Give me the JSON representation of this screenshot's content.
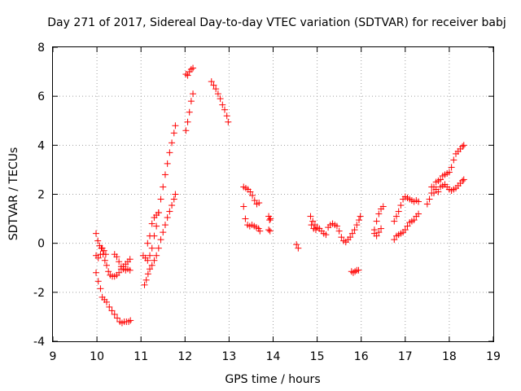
{
  "chart_data": {
    "type": "scatter",
    "title": "Day 271 of 2017, Sidereal Day-to-day VTEC variation (SDTVAR) for receiver babj",
    "xlabel": "GPS time / hours",
    "ylabel": "SDTVAR / TECUs",
    "xlim": [
      9,
      19
    ],
    "ylim": [
      -4,
      8
    ],
    "xticks": [
      "9",
      "10",
      "11",
      "12",
      "13",
      "14",
      "15",
      "16",
      "17",
      "18",
      "19"
    ],
    "yticks": [
      "-4",
      "-2",
      "0",
      "2",
      "4",
      "6",
      "8"
    ],
    "grid": true,
    "marker": "plus",
    "color": "#ff0000",
    "series": [
      {
        "name": "SDTVAR",
        "segments": [
          {
            "x": [
              9.98,
              10.03,
              10.08,
              10.12,
              10.17,
              10.22,
              10.28,
              10.34,
              10.4,
              10.46,
              10.52,
              10.57,
              10.62,
              10.67,
              10.72,
              10.76
            ],
            "y": [
              -1.2,
              -1.55,
              -1.85,
              -2.2,
              -2.3,
              -2.4,
              -2.6,
              -2.75,
              -2.9,
              -3.05,
              -3.2,
              -3.25,
              -3.2,
              -3.2,
              -3.2,
              -3.15
            ]
          },
          {
            "x": [
              9.98,
              10.02,
              10.06,
              10.1,
              10.14,
              10.18,
              10.22,
              10.26,
              10.3,
              10.35,
              10.4,
              10.45,
              10.5,
              10.55,
              10.6,
              10.65,
              10.7,
              10.75
            ],
            "y": [
              0.4,
              0.1,
              -0.1,
              -0.2,
              -0.45,
              -0.7,
              -0.9,
              -1.15,
              -1.3,
              -1.35,
              -1.35,
              -1.3,
              -1.2,
              -1.05,
              -0.95,
              -0.85,
              -0.75,
              -0.65
            ]
          },
          {
            "x": [
              9.98,
              10.03,
              10.08,
              10.12,
              10.16,
              10.2
            ],
            "y": [
              -0.5,
              -0.6,
              -0.45,
              -0.2,
              -0.3,
              -0.45
            ]
          },
          {
            "x": [
              10.4,
              10.45,
              10.5,
              10.55,
              10.6,
              10.65,
              10.7,
              10.75
            ],
            "y": [
              -0.45,
              -0.55,
              -0.75,
              -0.95,
              -1.05,
              -1.1,
              -1.05,
              -1.1
            ]
          },
          {
            "x": [
              11.08,
              11.12,
              11.16,
              11.2,
              11.25,
              11.3,
              11.35,
              11.4,
              11.45,
              11.5,
              11.55,
              11.6,
              11.65,
              11.7,
              11.75,
              11.78
            ],
            "y": [
              -1.7,
              -1.5,
              -1.25,
              -1.05,
              -0.9,
              -0.7,
              -0.5,
              -0.2,
              0.15,
              0.45,
              0.75,
              1.05,
              1.3,
              1.55,
              1.8,
              2.0
            ]
          },
          {
            "x": [
              11.05,
              11.1,
              11.15,
              11.2,
              11.25,
              11.3,
              11.35,
              11.4,
              11.45,
              11.5,
              11.55,
              11.6,
              11.65,
              11.7,
              11.75,
              11.78
            ],
            "y": [
              -0.5,
              -0.6,
              -0.7,
              -0.5,
              -0.2,
              0.3,
              0.7,
              1.25,
              1.8,
              2.3,
              2.8,
              3.25,
              3.7,
              4.1,
              4.5,
              4.8
            ]
          },
          {
            "x": [
              11.15,
              11.2,
              11.25,
              11.3,
              11.35,
              11.4
            ],
            "y": [
              0.0,
              0.3,
              0.8,
              1.05,
              1.15,
              1.25
            ]
          },
          {
            "x": [
              12.02,
              12.06,
              12.1,
              12.14,
              12.18
            ],
            "y": [
              4.6,
              4.95,
              5.35,
              5.8,
              6.1
            ]
          },
          {
            "x": [
              12.02,
              12.06,
              12.1,
              12.14,
              12.18
            ],
            "y": [
              6.9,
              6.85,
              7.0,
              7.1,
              7.15
            ]
          },
          {
            "x": [
              12.6,
              12.65,
              12.7,
              12.75,
              12.8,
              12.85,
              12.9,
              12.95,
              12.98
            ],
            "y": [
              6.6,
              6.45,
              6.3,
              6.1,
              5.9,
              5.65,
              5.45,
              5.2,
              4.95
            ]
          },
          {
            "x": [
              13.33,
              13.38,
              13.43,
              13.48,
              13.53,
              13.58,
              13.63,
              13.68
            ],
            "y": [
              2.3,
              2.25,
              2.2,
              2.1,
              1.95,
              1.75,
              1.6,
              1.65
            ]
          },
          {
            "x": [
              13.33,
              13.37,
              13.42,
              13.47,
              13.52,
              13.57,
              13.62,
              13.67,
              13.7
            ],
            "y": [
              1.5,
              1.0,
              0.75,
              0.7,
              0.75,
              0.7,
              0.65,
              0.6,
              0.5
            ]
          },
          {
            "x": [
              13.9,
              13.92,
              13.94,
              13.9,
              13.93
            ],
            "y": [
              1.1,
              0.95,
              1.0,
              0.55,
              0.5
            ]
          },
          {
            "x": [
              14.53,
              14.57
            ],
            "y": [
              -0.05,
              -0.2
            ]
          },
          {
            "x": [
              14.85,
              14.9,
              14.95,
              15.0,
              15.05,
              15.1,
              15.15,
              15.2,
              15.25,
              15.3,
              15.35,
              15.4,
              15.45,
              15.5,
              15.55,
              15.6,
              15.65,
              15.7,
              15.75,
              15.8,
              15.85,
              15.9,
              15.95,
              15.98
            ],
            "y": [
              1.1,
              0.9,
              0.75,
              0.65,
              0.6,
              0.5,
              0.4,
              0.35,
              0.65,
              0.75,
              0.8,
              0.75,
              0.7,
              0.5,
              0.25,
              0.1,
              0.05,
              0.15,
              0.25,
              0.4,
              0.55,
              0.75,
              0.95,
              1.1
            ]
          },
          {
            "x": [
              14.87,
              14.92,
              14.97
            ],
            "y": [
              0.75,
              0.6,
              0.55
            ]
          },
          {
            "x": [
              15.78,
              15.82,
              15.86,
              15.9,
              15.94
            ],
            "y": [
              -1.15,
              -1.2,
              -1.15,
              -1.1,
              -1.1
            ]
          },
          {
            "x": [
              16.3,
              16.35,
              16.4,
              16.45,
              16.5
            ],
            "y": [
              0.55,
              0.9,
              1.2,
              1.4,
              1.5
            ]
          },
          {
            "x": [
              16.3,
              16.35,
              16.4,
              16.45
            ],
            "y": [
              0.4,
              0.3,
              0.45,
              0.6
            ]
          },
          {
            "x": [
              16.75,
              16.8,
              16.85,
              16.9,
              16.95,
              17.0,
              17.05,
              17.1,
              17.15,
              17.2,
              17.25,
              17.3
            ],
            "y": [
              0.15,
              0.3,
              0.35,
              0.4,
              0.45,
              0.55,
              0.7,
              0.85,
              0.9,
              0.95,
              1.1,
              1.2
            ]
          },
          {
            "x": [
              16.75,
              16.8,
              16.85,
              16.9,
              16.95,
              17.0,
              17.05,
              17.1,
              17.15,
              17.2,
              17.25,
              17.3
            ],
            "y": [
              0.9,
              1.1,
              1.3,
              1.55,
              1.8,
              1.9,
              1.85,
              1.8,
              1.75,
              1.7,
              1.75,
              1.7
            ]
          },
          {
            "x": [
              17.5,
              17.55,
              17.6,
              17.65,
              17.7,
              17.75,
              17.8,
              17.85,
              17.9,
              17.95,
              18.0,
              18.05,
              18.1,
              18.15,
              18.2,
              18.25,
              18.3,
              18.33
            ],
            "y": [
              1.6,
              1.8,
              2.05,
              2.3,
              2.5,
              2.55,
              2.6,
              2.75,
              2.8,
              2.85,
              2.9,
              3.1,
              3.4,
              3.65,
              3.75,
              3.85,
              3.95,
              4.0
            ]
          },
          {
            "x": [
              17.6,
              17.65,
              17.7,
              17.75,
              17.8,
              17.85,
              17.9,
              17.95,
              18.0,
              18.05,
              18.1,
              18.15,
              18.2,
              18.25,
              18.3,
              18.33
            ],
            "y": [
              2.3,
              2.05,
              2.2,
              2.1,
              2.3,
              2.35,
              2.4,
              2.3,
              2.2,
              2.15,
              2.2,
              2.25,
              2.35,
              2.45,
              2.55,
              2.6
            ]
          }
        ]
      }
    ]
  }
}
